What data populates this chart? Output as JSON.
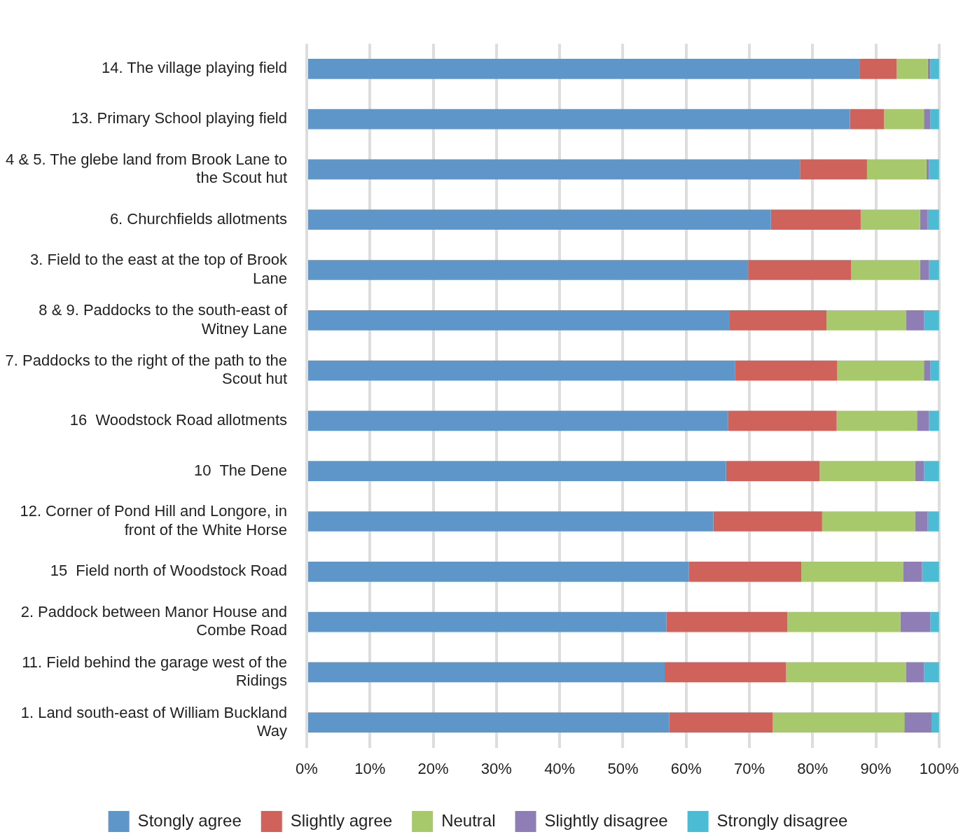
{
  "chart_data": {
    "type": "bar",
    "orientation": "horizontal",
    "stacked": true,
    "categories": [
      "14. The village playing field",
      "13. Primary School playing field",
      "4 & 5. The glebe land from Brook Lane to the Scout hut",
      "6. Churchfields allotments",
      "3. Field to the east at the top of Brook Lane",
      "8 & 9. Paddocks to the south-east of Witney Lane",
      "7. Paddocks to the right of the path to the Scout hut",
      "16  Woodstock Road allotments",
      "10  The Dene",
      "12. Corner of Pond Hill and Longore, in front of the White Horse",
      "15  Field north of Woodstock Road",
      "2. Paddock between Manor House and Combe Road",
      "11. Field behind the garage west of the Ridings",
      "1. Land south-east of William Buckland Way"
    ],
    "series": [
      {
        "name": "Stongly agree",
        "color": "#5f96c9",
        "values": [
          87.4,
          85.9,
          78.0,
          73.4,
          69.8,
          66.8,
          67.7,
          66.6,
          66.3,
          64.3,
          60.4,
          56.9,
          56.6,
          57.3
        ]
      },
      {
        "name": "Slightly agree",
        "color": "#d0625c",
        "values": [
          5.9,
          5.4,
          10.6,
          14.2,
          16.3,
          15.4,
          16.2,
          17.2,
          14.8,
          17.2,
          17.8,
          19.1,
          19.2,
          16.4
        ]
      },
      {
        "name": "Neutral",
        "color": "#a7c86b",
        "values": [
          4.9,
          6.3,
          9.4,
          9.4,
          10.9,
          12.6,
          13.7,
          12.7,
          15.1,
          14.7,
          16.1,
          17.9,
          19.0,
          20.8
        ]
      },
      {
        "name": "Slightly disagree",
        "color": "#8f7db6",
        "values": [
          0.4,
          1.0,
          0.4,
          1.2,
          1.4,
          2.8,
          1.0,
          1.9,
          1.4,
          2.0,
          3.0,
          4.7,
          2.8,
          4.3
        ]
      },
      {
        "name": "Strongly disagree",
        "color": "#4bbcd4",
        "values": [
          1.4,
          1.4,
          1.6,
          1.8,
          1.6,
          2.4,
          1.4,
          1.6,
          2.4,
          1.8,
          2.7,
          1.4,
          2.4,
          1.2
        ]
      }
    ],
    "xlim": [
      0,
      100
    ],
    "xticks": [
      {
        "value": 0,
        "label": "0%"
      },
      {
        "value": 10,
        "label": "10%"
      },
      {
        "value": 20,
        "label": "20%"
      },
      {
        "value": 30,
        "label": "30%"
      },
      {
        "value": 40,
        "label": "40%"
      },
      {
        "value": 50,
        "label": "50%"
      },
      {
        "value": 60,
        "label": "60%"
      },
      {
        "value": 70,
        "label": "70%"
      },
      {
        "value": 80,
        "label": "80%"
      },
      {
        "value": 90,
        "label": "90%"
      },
      {
        "value": 100,
        "label": "100%"
      }
    ],
    "grid": "x",
    "legend": "bottom"
  }
}
